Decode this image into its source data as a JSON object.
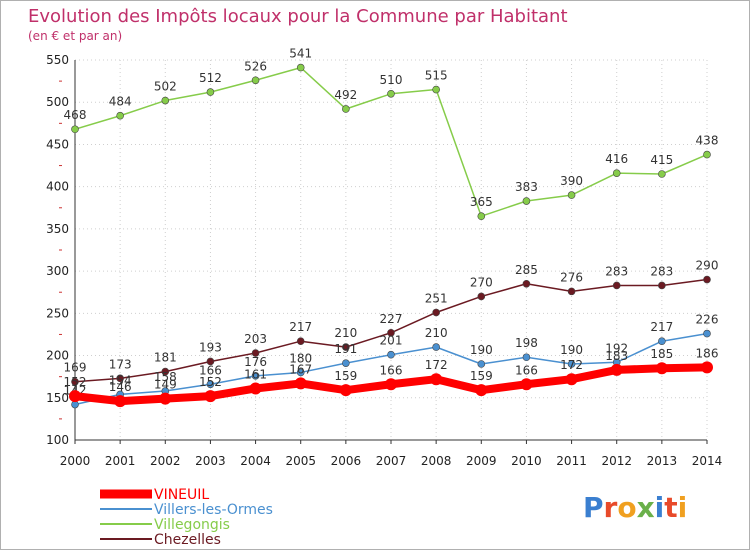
{
  "chart_data": {
    "type": "line",
    "title": "Evolution des Impôts locaux pour la Commune par Habitant",
    "subtitle": "(en € et par an)",
    "x": [
      "2000",
      "2001",
      "2002",
      "2003",
      "2004",
      "2005",
      "2006",
      "2007",
      "2008",
      "2009",
      "2010",
      "2011",
      "2012",
      "2013",
      "2014"
    ],
    "ylim": [
      100,
      550
    ],
    "yticks": [
      100,
      150,
      200,
      250,
      300,
      350,
      400,
      450,
      500,
      550
    ],
    "grid": true,
    "legend_position": "bottom-left",
    "series": [
      {
        "name": "Villegongis",
        "color": "#86cc4a",
        "values": [
          468,
          484,
          502,
          512,
          526,
          541,
          492,
          510,
          515,
          365,
          383,
          390,
          416,
          415,
          438
        ]
      },
      {
        "name": "Chezelles",
        "color": "#6b1a22",
        "values": [
          169,
          173,
          181,
          193,
          203,
          217,
          210,
          227,
          251,
          270,
          285,
          276,
          283,
          283,
          290
        ]
      },
      {
        "name": "Villers-les-Ormes",
        "color": "#4a90d0",
        "values": [
          142,
          154,
          158,
          166,
          176,
          180,
          191,
          201,
          210,
          190,
          198,
          190,
          192,
          217,
          226
        ]
      },
      {
        "name": "VINEUIL",
        "color": "#ff0000",
        "values": [
          152,
          146,
          149,
          152,
          161,
          167,
          159,
          166,
          172,
          159,
          166,
          172,
          183,
          185,
          186
        ]
      }
    ],
    "legend_order": [
      "VINEUIL",
      "Villers-les-Ormes",
      "Villegongis",
      "Chezelles"
    ],
    "data_labels": {
      "Villegongis": [
        "468",
        "484",
        "502",
        "512",
        "526",
        "541",
        "492",
        "510",
        "515",
        "365",
        "383",
        "390",
        "416",
        "415",
        "438"
      ],
      "Chezelles": [
        "169",
        "173",
        "181",
        "193",
        "203",
        "217",
        "210",
        "227",
        "251",
        "270",
        "285",
        "276",
        "283",
        "283",
        "290"
      ],
      "Villers-les-Ormes": [
        "142",
        "154",
        "158",
        "166",
        "176",
        "180",
        "191",
        "201",
        "210",
        "190",
        "198",
        "190",
        "192",
        "217",
        "226"
      ],
      "VINEUIL": [
        "152",
        "146",
        "149",
        "152",
        "161",
        "167",
        "159",
        "166",
        "172",
        "159",
        "166",
        "172",
        "183",
        "185",
        "186"
      ]
    }
  },
  "logo": {
    "text": "Proxiti",
    "letter_colors": [
      "#3a7fd0",
      "#e84a2a",
      "#f0a020",
      "#6ab04a",
      "#3a7fd0",
      "#e84a2a",
      "#f0a020"
    ]
  }
}
